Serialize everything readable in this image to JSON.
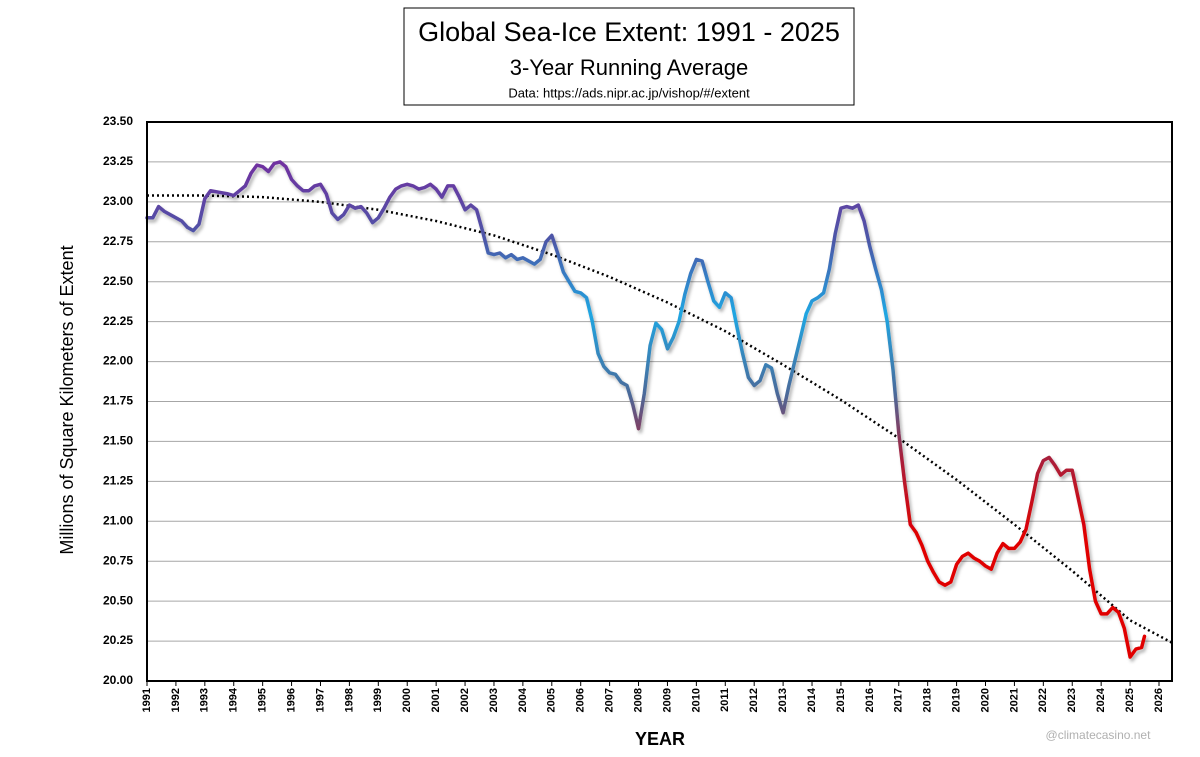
{
  "chart_data": {
    "type": "line",
    "title": "Global Sea-Ice Extent: 1991 - 2025",
    "subtitle": "3-Year Running Average",
    "source": "Data: https://ads.nipr.ac.jp/vishop/#/extent",
    "ylabel": "Millions of Square Kilometers of Extent",
    "xlabel": "YEAR",
    "watermark": "@climatecasino.net",
    "xlim": [
      1991,
      2026.45
    ],
    "ylim": [
      20.0,
      23.5
    ],
    "xticks": [
      1991,
      1992,
      1993,
      1994,
      1995,
      1996,
      1997,
      1998,
      1999,
      2000,
      2001,
      2002,
      2003,
      2004,
      2005,
      2006,
      2007,
      2008,
      2009,
      2010,
      2011,
      2012,
      2013,
      2014,
      2015,
      2016,
      2017,
      2018,
      2019,
      2020,
      2021,
      2022,
      2023,
      2024,
      2025,
      2026
    ],
    "yticks": [
      {
        "value": 20.0,
        "label": "20.00"
      },
      {
        "value": 20.25,
        "label": "20.25"
      },
      {
        "value": 20.5,
        "label": "20.50"
      },
      {
        "value": 20.75,
        "label": "20.75"
      },
      {
        "value": 21.0,
        "label": "21.00"
      },
      {
        "value": 21.25,
        "label": "21.25"
      },
      {
        "value": 21.5,
        "label": "21.50"
      },
      {
        "value": 21.75,
        "label": "21.75"
      },
      {
        "value": 22.0,
        "label": "22.00"
      },
      {
        "value": 22.25,
        "label": "22.25"
      },
      {
        "value": 22.5,
        "label": "22.50"
      },
      {
        "value": 22.75,
        "label": "22.75"
      },
      {
        "value": 23.0,
        "label": "23.00"
      },
      {
        "value": 23.25,
        "label": "23.25"
      },
      {
        "value": 23.5,
        "label": "23.50"
      }
    ],
    "grid": true,
    "color_stops": [
      {
        "value": 23.25,
        "color": "#7030a0"
      },
      {
        "value": 22.75,
        "color": "#4b58a8"
      },
      {
        "value": 22.3,
        "color": "#1fa6e2"
      },
      {
        "value": 21.8,
        "color": "#4a6a9a"
      },
      {
        "value": 21.4,
        "color": "#a8203c"
      },
      {
        "value": 20.9,
        "color": "#e00000"
      }
    ],
    "x": [
      1991.0,
      1991.2,
      1991.4,
      1991.6,
      1991.9,
      1992.2,
      1992.4,
      1992.6,
      1992.8,
      1993.0,
      1993.2,
      1993.5,
      1993.8,
      1994.0,
      1994.2,
      1994.4,
      1994.6,
      1994.8,
      1995.0,
      1995.2,
      1995.4,
      1995.6,
      1995.8,
      1996.0,
      1996.2,
      1996.4,
      1996.6,
      1996.8,
      1997.0,
      1997.2,
      1997.4,
      1997.6,
      1997.8,
      1998.0,
      1998.2,
      1998.4,
      1998.6,
      1998.8,
      1999.0,
      1999.2,
      1999.4,
      1999.6,
      1999.8,
      2000.0,
      2000.2,
      2000.4,
      2000.6,
      2000.8,
      2001.0,
      2001.2,
      2001.4,
      2001.6,
      2001.8,
      2002.0,
      2002.2,
      2002.4,
      2002.6,
      2002.8,
      2003.0,
      2003.2,
      2003.4,
      2003.6,
      2003.8,
      2004.0,
      2004.2,
      2004.4,
      2004.6,
      2004.8,
      2005.0,
      2005.2,
      2005.4,
      2005.6,
      2005.8,
      2006.0,
      2006.2,
      2006.4,
      2006.6,
      2006.8,
      2007.0,
      2007.2,
      2007.4,
      2007.6,
      2007.8,
      2008.0,
      2008.2,
      2008.4,
      2008.6,
      2008.8,
      2009.0,
      2009.2,
      2009.4,
      2009.6,
      2009.8,
      2010.0,
      2010.2,
      2010.4,
      2010.6,
      2010.8,
      2011.0,
      2011.2,
      2011.4,
      2011.6,
      2011.8,
      2012.0,
      2012.2,
      2012.4,
      2012.6,
      2012.8,
      2013.0,
      2013.2,
      2013.4,
      2013.6,
      2013.8,
      2014.0,
      2014.2,
      2014.4,
      2014.6,
      2014.8,
      2015.0,
      2015.2,
      2015.4,
      2015.6,
      2015.8,
      2016.0,
      2016.2,
      2016.4,
      2016.6,
      2016.8,
      2017.0,
      2017.2,
      2017.4,
      2017.6,
      2017.8,
      2018.0,
      2018.2,
      2018.4,
      2018.6,
      2018.8,
      2019.0,
      2019.2,
      2019.4,
      2019.6,
      2019.8,
      2020.0,
      2020.2,
      2020.4,
      2020.6,
      2020.8,
      2021.0,
      2021.2,
      2021.4,
      2021.6,
      2021.8,
      2022.0,
      2022.2,
      2022.4,
      2022.6,
      2022.8,
      2023.0,
      2023.2,
      2023.4,
      2023.6,
      2023.8,
      2024.0,
      2024.2,
      2024.4,
      2024.6,
      2024.8,
      2025.0,
      2025.2,
      2025.4,
      2025.5
    ],
    "values": [
      22.9,
      22.9,
      22.97,
      22.94,
      22.91,
      22.88,
      22.84,
      22.82,
      22.86,
      23.02,
      23.07,
      23.06,
      23.05,
      23.04,
      23.07,
      23.1,
      23.18,
      23.23,
      23.22,
      23.19,
      23.24,
      23.25,
      23.22,
      23.14,
      23.1,
      23.07,
      23.07,
      23.1,
      23.11,
      23.05,
      22.93,
      22.89,
      22.92,
      22.98,
      22.96,
      22.97,
      22.93,
      22.87,
      22.9,
      22.96,
      23.03,
      23.08,
      23.1,
      23.11,
      23.1,
      23.08,
      23.09,
      23.11,
      23.08,
      23.03,
      23.1,
      23.1,
      23.03,
      22.95,
      22.98,
      22.95,
      22.82,
      22.68,
      22.67,
      22.68,
      22.65,
      22.67,
      22.64,
      22.65,
      22.63,
      22.61,
      22.64,
      22.75,
      22.79,
      22.68,
      22.56,
      22.5,
      22.44,
      22.43,
      22.4,
      22.25,
      22.05,
      21.97,
      21.93,
      21.92,
      21.87,
      21.85,
      21.73,
      21.58,
      21.8,
      22.1,
      22.24,
      22.2,
      22.08,
      22.15,
      22.25,
      22.42,
      22.55,
      22.64,
      22.63,
      22.5,
      22.38,
      22.34,
      22.43,
      22.4,
      22.22,
      22.05,
      21.9,
      21.85,
      21.88,
      21.98,
      21.96,
      21.8,
      21.68,
      21.85,
      22.0,
      22.15,
      22.3,
      22.38,
      22.4,
      22.43,
      22.58,
      22.8,
      22.96,
      22.97,
      22.96,
      22.98,
      22.88,
      22.72,
      22.58,
      22.45,
      22.25,
      21.95,
      21.55,
      21.25,
      20.98,
      20.93,
      20.85,
      20.75,
      20.68,
      20.62,
      20.6,
      20.62,
      20.73,
      20.78,
      20.8,
      20.77,
      20.75,
      20.72,
      20.7,
      20.8,
      20.86,
      20.83,
      20.83,
      20.87,
      20.95,
      21.12,
      21.3,
      21.38,
      21.4,
      21.35,
      21.29,
      21.32,
      21.32,
      21.15,
      20.98,
      20.7,
      20.5,
      20.42,
      20.42,
      20.46,
      20.43,
      20.33,
      20.15,
      20.2,
      20.21,
      20.28
    ],
    "trendline": {
      "color": "#000000",
      "style": "dotted",
      "x": [
        1991,
        1993,
        1995,
        1997,
        1999,
        2001,
        2003,
        2005,
        2007,
        2009,
        2011,
        2013,
        2015,
        2017,
        2019,
        2021,
        2023,
        2025,
        2026.45
      ],
      "values": [
        23.04,
        23.04,
        23.03,
        23.0,
        22.95,
        22.88,
        22.79,
        22.67,
        22.53,
        22.37,
        22.19,
        21.98,
        21.76,
        21.52,
        21.26,
        20.98,
        20.69,
        20.38,
        20.24
      ]
    }
  }
}
